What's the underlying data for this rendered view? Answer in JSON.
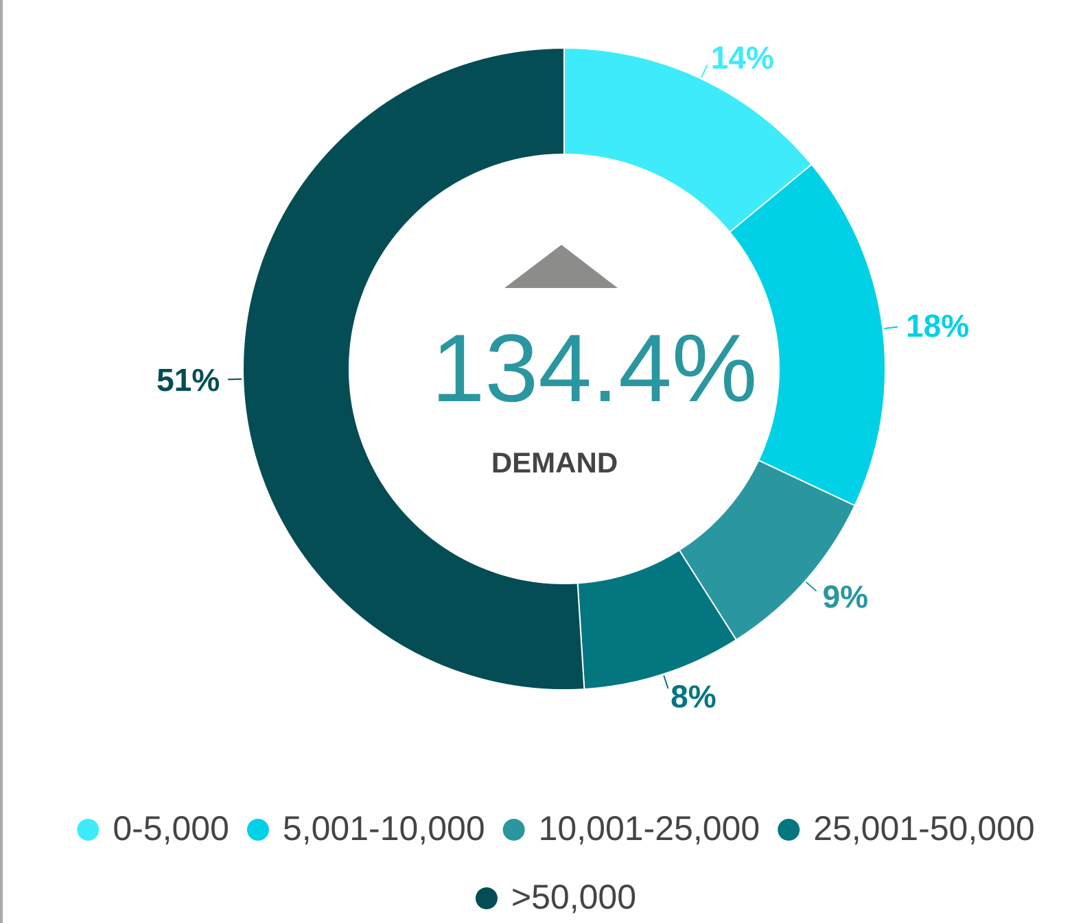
{
  "chart_data": {
    "type": "donut",
    "categories": [
      "0-5,000",
      "5,001-10,000",
      "10,001-25,000",
      "25,001-50,000",
      ">50,000"
    ],
    "values": [
      14,
      18,
      9,
      8,
      51
    ],
    "value_labels": [
      "14%",
      "18%",
      "9%",
      "8%",
      "51%"
    ],
    "colors": [
      "#3eebfb",
      "#00d1e6",
      "#2a96a0",
      "#037680",
      "#044d55"
    ],
    "center_value": "134.4%",
    "center_label": "DEMAND",
    "legend": "bottom"
  }
}
